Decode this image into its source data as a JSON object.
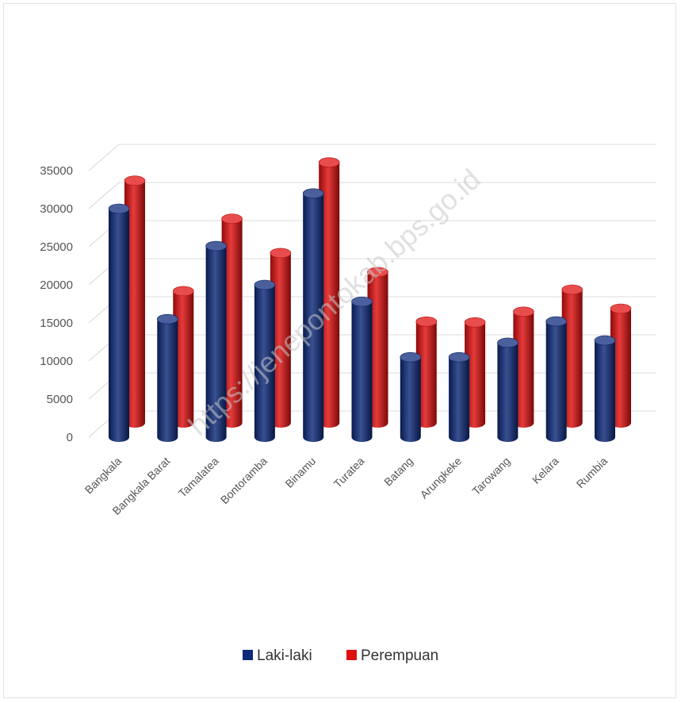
{
  "watermark": "https://jenepontokab.bps.go.id",
  "chart_data": {
    "type": "bar",
    "categories": [
      "Bangkala",
      "Bangkala Barat",
      "Tamalatea",
      "Bontoramba",
      "Binamu",
      "Turatea",
      "Batang",
      "Arungkeke",
      "Tarowang",
      "Kelara",
      "Rumbia"
    ],
    "series": [
      {
        "name": "Laki-laki",
        "color": "#0d2a7a",
        "values": [
          30000,
          15500,
          25100,
          20000,
          32000,
          17800,
          10500,
          10500,
          12400,
          15200,
          12700
        ]
      },
      {
        "name": "Perempuan",
        "color": "#e01010",
        "values": [
          31800,
          17300,
          26800,
          22300,
          34200,
          19800,
          13300,
          13200,
          14600,
          17500,
          15000
        ]
      }
    ],
    "yticks": [
      "0",
      "5000",
      "10000",
      "15000",
      "20000",
      "25000",
      "30000",
      "35000"
    ],
    "ylim": [
      0,
      35000
    ],
    "grid": true,
    "style": "3d cylinder",
    "legend_position": "bottom"
  }
}
